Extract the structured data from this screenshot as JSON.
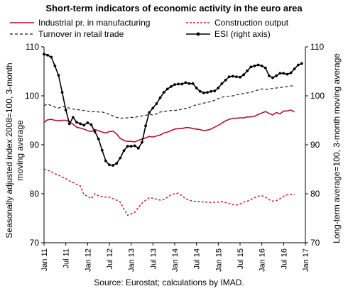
{
  "title": "Short-term indicators of economic activity in the euro area",
  "source": "Source: Eurostat; calculations by IMAD.",
  "chart_data": {
    "type": "line",
    "title": "Short-term indicators of economic activity in the euro area",
    "ylabel_left": "Seasonally adjusted index 2008=100, 3-month moving average",
    "ylabel_right": "Long-term average=100, 3-month moving average",
    "ylim_left": [
      70,
      110
    ],
    "ylim_right": [
      70,
      110
    ],
    "y_ticks": [
      70,
      80,
      90,
      100,
      110
    ],
    "x_ticks": [
      "Jan 11",
      "Jul 11",
      "Jan 12",
      "Jul 12",
      "Jan 13",
      "Jul 13",
      "Jan 14",
      "Jul 14",
      "Jan 15",
      "Jul 15",
      "Jan 16",
      "Jul 16",
      "Jan 17"
    ],
    "x_start": "2011-01",
    "x_end": "2017-01",
    "grid": false,
    "series": [
      {
        "name": "Industrial pr. in manufacturing",
        "axis": "left",
        "color": "#b0142c",
        "style": "solid",
        "values": [
          94.6,
          95.1,
          95.2,
          95.0,
          94.9,
          95.0,
          95.0,
          94.7,
          94.2,
          93.6,
          93.4,
          93.2,
          92.9,
          92.7,
          93.1,
          92.9,
          92.6,
          92.4,
          92.7,
          92.8,
          92.2,
          91.3,
          90.9,
          90.7,
          90.7,
          90.6,
          90.9,
          91.2,
          91.4,
          91.7,
          91.6,
          91.8,
          92.0,
          92.4,
          92.6,
          92.9,
          93.2,
          93.3,
          93.3,
          93.5,
          93.5,
          93.3,
          93.2,
          93.1,
          92.9,
          93.0,
          93.2,
          93.6,
          94.0,
          94.4,
          94.9,
          95.2,
          95.4,
          95.4,
          95.5,
          95.5,
          95.7,
          95.7,
          95.8,
          96.2,
          96.5,
          96.8,
          96.4,
          96.1,
          96.6,
          96.3,
          96.9,
          96.9,
          97.1,
          96.7
        ]
      },
      {
        "name": "Construction output",
        "axis": "left",
        "color": "#d0202a",
        "style": "dashed",
        "values": [
          85.0,
          84.8,
          84.5,
          84.1,
          83.8,
          83.4,
          83.1,
          82.6,
          82.3,
          81.9,
          81.6,
          79.8,
          79.5,
          79.0,
          80.0,
          79.6,
          79.4,
          79.3,
          79.3,
          79.0,
          78.7,
          78.3,
          76.9,
          75.6,
          75.9,
          76.2,
          77.2,
          78.1,
          78.7,
          79.2,
          79.1,
          78.9,
          78.7,
          78.8,
          79.3,
          79.8,
          80.0,
          80.1,
          79.6,
          79.0,
          78.7,
          78.5,
          78.4,
          78.4,
          78.3,
          78.3,
          78.2,
          78.3,
          78.3,
          78.4,
          78.2,
          78.0,
          77.8,
          77.7,
          77.9,
          78.3,
          78.5,
          78.8,
          79.2,
          79.5,
          79.6,
          79.3,
          78.8,
          78.5,
          78.6,
          79.0,
          79.5,
          79.8,
          79.9,
          79.8
        ]
      },
      {
        "name": "Turnover in retail trade",
        "axis": "left",
        "color": "#1a1a1a",
        "style": "dashed",
        "values": [
          98.0,
          98.3,
          98.0,
          97.7,
          97.5,
          97.8,
          97.7,
          97.5,
          97.3,
          97.2,
          97.1,
          97.0,
          96.9,
          96.7,
          96.8,
          96.7,
          96.7,
          96.5,
          96.2,
          95.9,
          95.6,
          95.4,
          95.5,
          95.5,
          95.6,
          95.6,
          95.8,
          95.9,
          96.0,
          96.2,
          96.1,
          96.3,
          96.7,
          96.8,
          96.9,
          97.0,
          97.0,
          97.1,
          97.3,
          97.4,
          97.6,
          97.9,
          98.2,
          98.3,
          98.5,
          98.7,
          98.8,
          99.1,
          99.4,
          99.7,
          99.9,
          99.9,
          100.0,
          100.2,
          100.3,
          100.5,
          100.6,
          100.7,
          101.0,
          101.2,
          101.4,
          101.3,
          101.4,
          101.5,
          101.6,
          101.7,
          101.8,
          101.9,
          102.0,
          102.1
        ]
      },
      {
        "name": "ESI (right axis)",
        "axis": "right",
        "color": "#000000",
        "style": "solid-markers",
        "values": [
          108.5,
          108.3,
          107.9,
          106.1,
          104.2,
          100.7,
          97.1,
          94.3,
          95.6,
          94.6,
          94.3,
          94.0,
          94.5,
          94.1,
          92.7,
          91.2,
          88.9,
          86.7,
          85.9,
          85.8,
          86.2,
          87.3,
          88.8,
          89.7,
          89.7,
          89.8,
          89.3,
          90.5,
          93.9,
          96.6,
          97.5,
          98.4,
          99.6,
          100.7,
          101.4,
          101.9,
          102.3,
          102.4,
          102.4,
          102.7,
          102.5,
          102.5,
          101.6,
          100.9,
          100.6,
          100.7,
          100.9,
          101.0,
          101.6,
          102.5,
          103.2,
          103.9,
          104.0,
          103.9,
          103.8,
          104.3,
          105.1,
          105.9,
          106.1,
          106.3,
          106.1,
          105.7,
          104.1,
          103.7,
          104.1,
          104.6,
          104.6,
          104.4,
          104.7,
          105.5,
          106.3,
          106.6
        ]
      }
    ]
  }
}
